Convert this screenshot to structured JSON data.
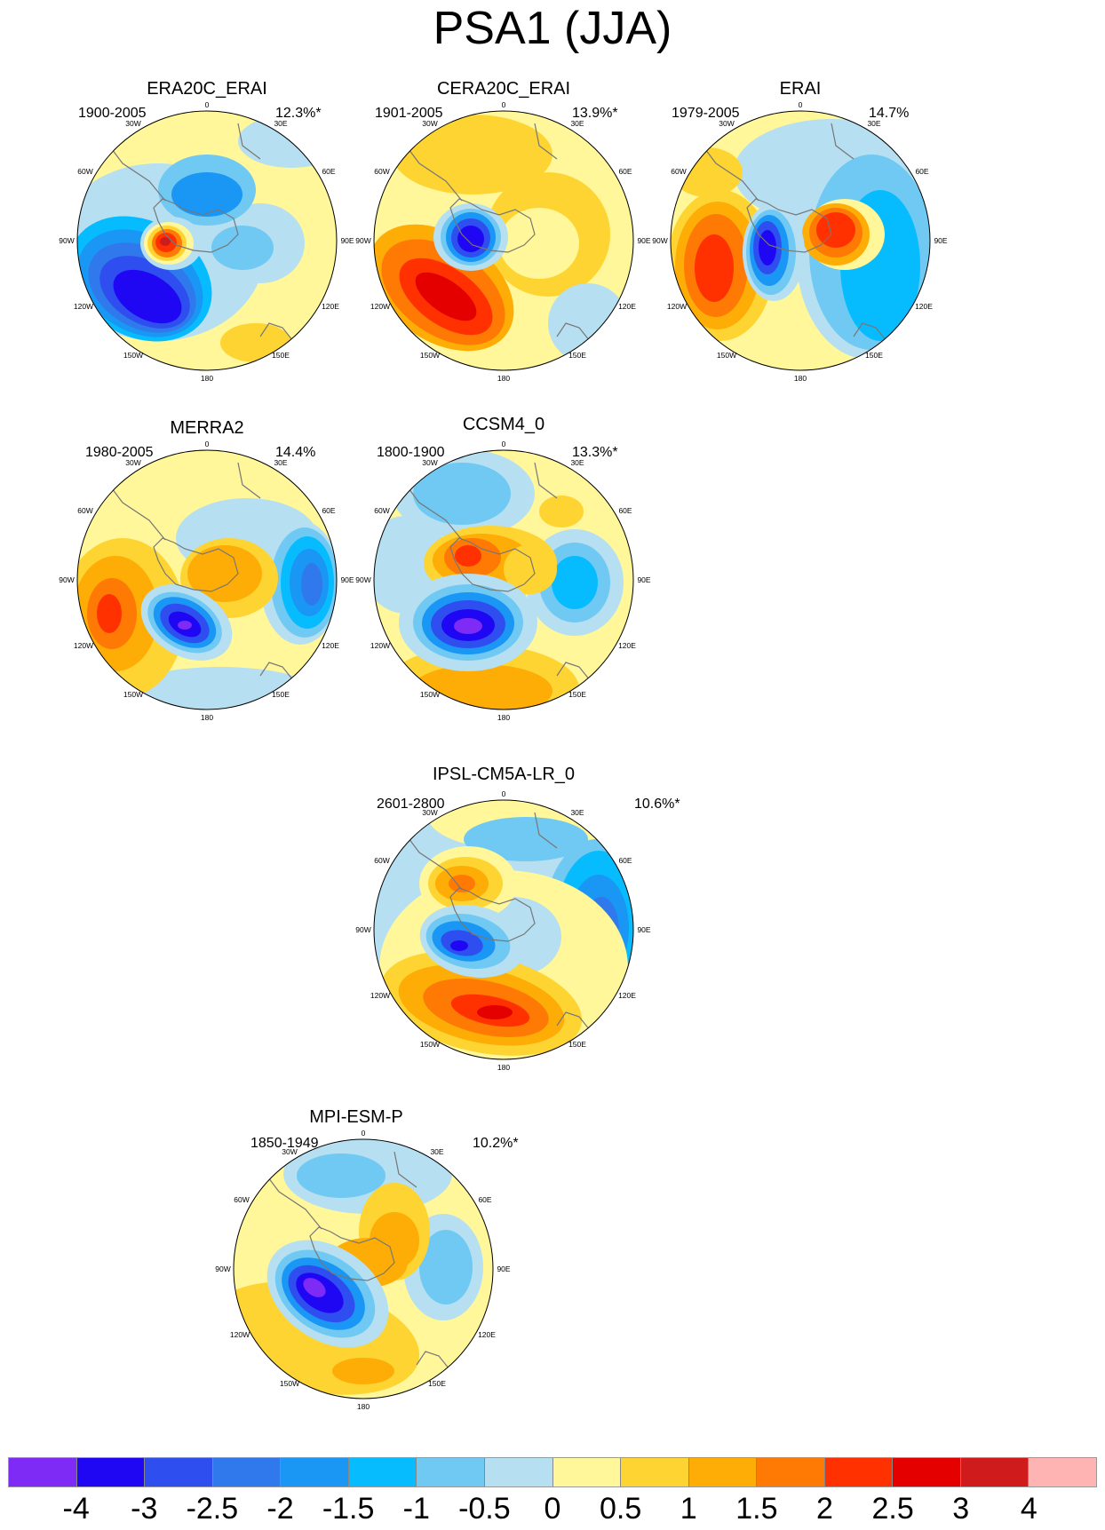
{
  "title": "PSA1 (JJA)",
  "map_labels": {
    "top": "0",
    "bottom": "180",
    "lon30w": "30W",
    "lon30e": "30E",
    "lon60w": "60W",
    "lon60e": "60E",
    "lon90w": "90W",
    "lon90e": "90E",
    "lon120w": "120W",
    "lon120e": "120E",
    "lon150w": "150W",
    "lon150e": "150E"
  },
  "panels": [
    {
      "title": "ERA20C_ERAI",
      "years": "1900-2005",
      "variance": "12.3%*"
    },
    {
      "title": "CERA20C_ERAI",
      "years": "1901-2005",
      "variance": "13.9%*"
    },
    {
      "title": "ERAI",
      "years": "1979-2005",
      "variance": "14.7%"
    },
    {
      "title": "MERRA2",
      "years": "1980-2005",
      "variance": "14.4%"
    },
    {
      "title": "CCSM4_0",
      "years": "1800-1900",
      "variance": "13.3%*"
    },
    {
      "title": "IPSL-CM5A-LR_0",
      "years": "2601-2800",
      "variance": "10.6%*"
    },
    {
      "title": "MPI-ESM-P",
      "years": "1850-1949",
      "variance": "10.2%*"
    }
  ],
  "colorbar": {
    "colors": [
      "#7e2bf5",
      "#2007f3",
      "#2f4ef0",
      "#3079ec",
      "#1a96f5",
      "#06bcfe",
      "#70c9f2",
      "#b6dff2",
      "#fff799",
      "#fed432",
      "#fdad05",
      "#fe7a04",
      "#ff3100",
      "#e50000",
      "#cf1b1b",
      "#ffb4b4"
    ],
    "ticks": [
      "-4",
      "-3",
      "-2.5",
      "-2",
      "-1.5",
      "-1",
      "-0.5",
      "0",
      "0.5",
      "1",
      "1.5",
      "2",
      "2.5",
      "3",
      "4"
    ]
  }
}
